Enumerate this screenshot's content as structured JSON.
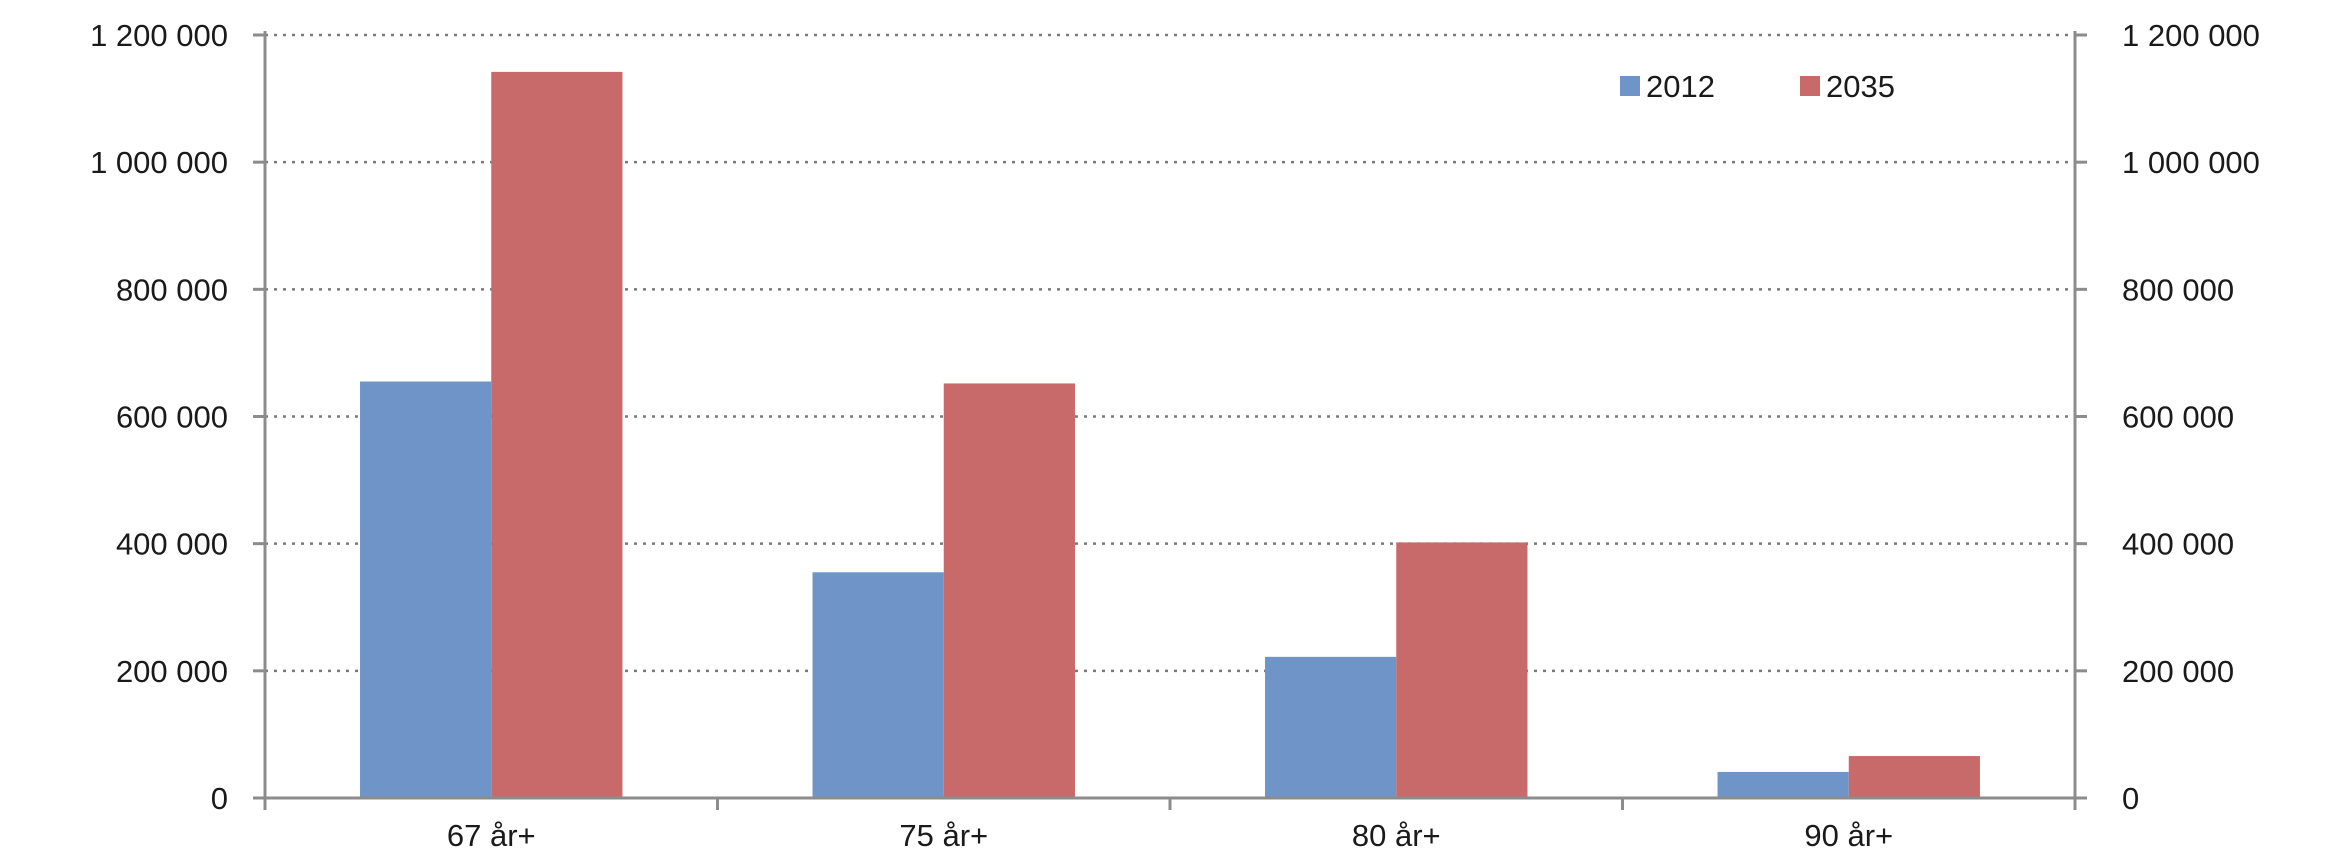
{
  "chart_data": {
    "type": "bar",
    "title": "",
    "xlabel": "",
    "ylabel": "",
    "categories": [
      "67 år+",
      "75 år+",
      "80 år+",
      "90 år+"
    ],
    "series": [
      {
        "name": "2012",
        "color": "#6f94c7",
        "values": [
          655000,
          355000,
          222000,
          41000
        ]
      },
      {
        "name": "2035",
        "color": "#c96a6a",
        "values": [
          1142000,
          652000,
          402000,
          66000
        ]
      }
    ],
    "ylim": [
      0,
      1200000
    ],
    "y_ticks": [
      0,
      200000,
      400000,
      600000,
      800000,
      1000000,
      1200000
    ],
    "y_tick_labels": [
      "0",
      "200 000",
      "400 000",
      "600 000",
      "800 000",
      "1 000 000",
      "1 200 000"
    ],
    "secondary_y_axis": true,
    "grid": "horizontal-dotted",
    "legend_position": "top-right"
  }
}
